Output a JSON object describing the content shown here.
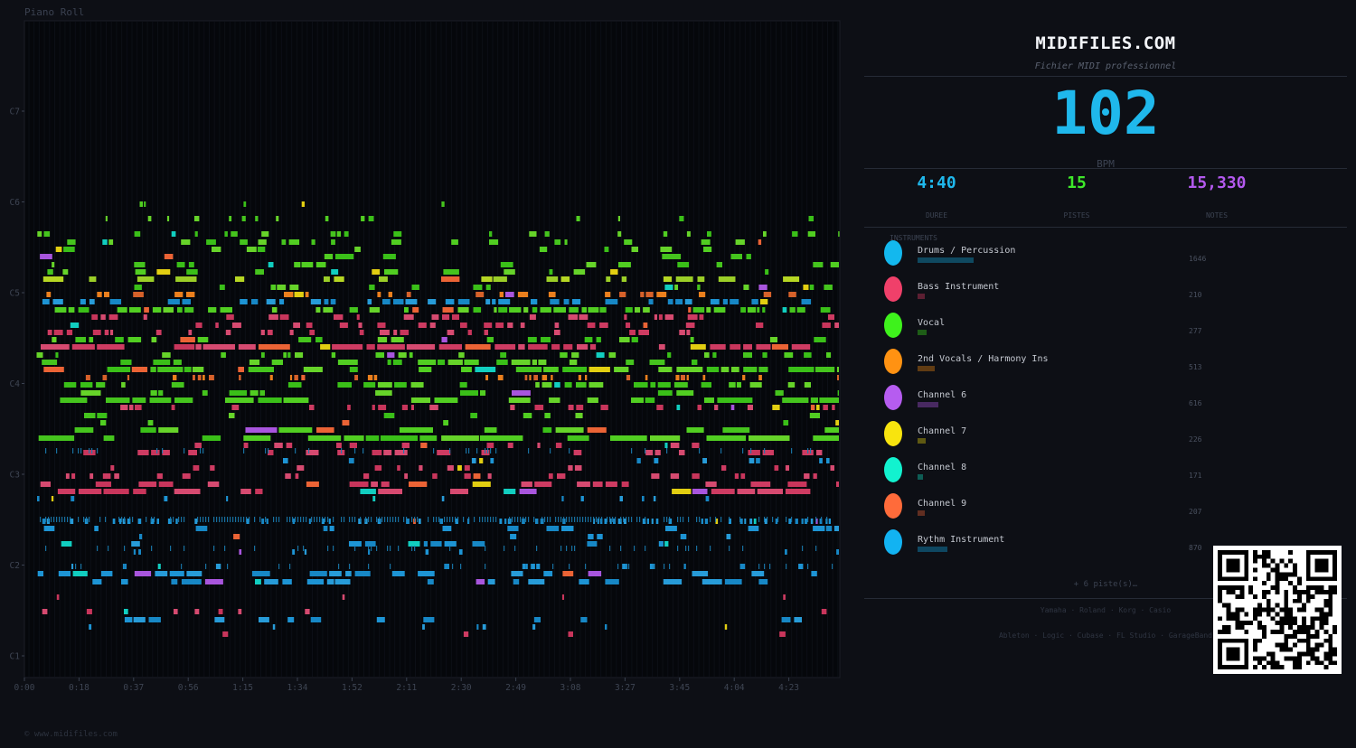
{
  "piano_roll": {
    "title": "Piano Roll",
    "footer": "© www.midifiles.com",
    "pitch_labels": [
      "C1",
      "C2",
      "C3",
      "C4",
      "C5",
      "C6",
      "C7"
    ],
    "time_labels": [
      "0:00",
      "0:18",
      "0:37",
      "0:56",
      "1:15",
      "1:34",
      "1:52",
      "2:11",
      "2:30",
      "2:49",
      "3:08",
      "3:27",
      "3:45",
      "4:04",
      "4:23"
    ]
  },
  "panel": {
    "brand": "MIDIFILES.COM",
    "subtitle": "Fichier MIDI professionnel",
    "bpm": "102",
    "bpm_label": "BPM",
    "stats": [
      {
        "value": "4:40",
        "label": "DUREE",
        "color": "#1fb8ec"
      },
      {
        "value": "15",
        "label": "PISTES",
        "color": "#3ee82a"
      },
      {
        "value": "15,330",
        "label": "NOTES",
        "color": "#b359ee"
      }
    ],
    "instruments_header": "INSTRUMENTS",
    "instruments": [
      {
        "name": "Drums / Percussion",
        "count": "1646",
        "color": "#13b8ee",
        "share": 0.107
      },
      {
        "name": "Bass Instrument",
        "count": "210",
        "color": "#f0406a",
        "share": 0.014
      },
      {
        "name": "Vocal",
        "count": "277",
        "color": "#3ef21c",
        "share": 0.018
      },
      {
        "name": "2nd Vocals / Harmony Ins",
        "count": "513",
        "color": "#ff9212",
        "share": 0.033
      },
      {
        "name": "Channel 6",
        "count": "616",
        "color": "#b65cf0",
        "share": 0.04
      },
      {
        "name": "Channel 7",
        "count": "226",
        "color": "#f8e40e",
        "share": 0.015
      },
      {
        "name": "Channel 8",
        "count": "171",
        "color": "#12f2cf",
        "share": 0.011
      },
      {
        "name": "Channel 9",
        "count": "207",
        "color": "#ff6b3a",
        "share": 0.014
      },
      {
        "name": "Rythm Instrument",
        "count": "870",
        "color": "#12b3f2",
        "share": 0.057
      }
    ],
    "more_tracks": "+ 6 piste(s)…",
    "brands_line1": "Yamaha · Roland · Korg · Casio",
    "brands_line2": "Ableton · Logic · Cubase · FL Studio · GarageBand"
  }
}
